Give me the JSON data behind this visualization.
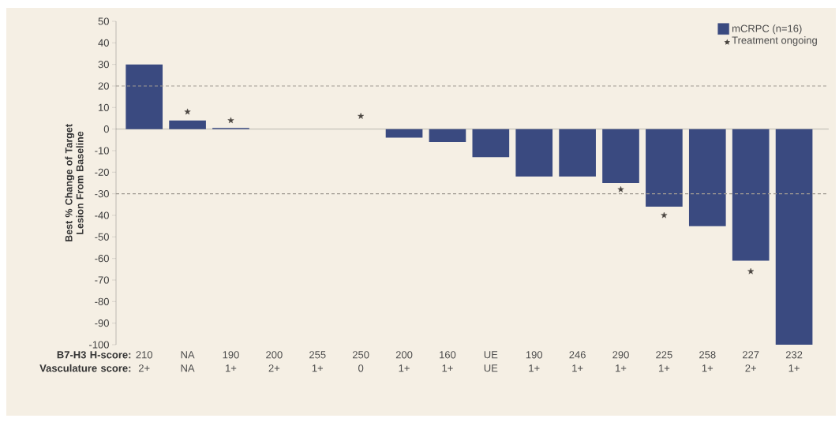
{
  "chart_data": {
    "type": "bar",
    "ylabel": "Best % Change of Target Lesion From Baseline",
    "xlabel": "B7-H3 H-score: Vasculature score:",
    "categories": [
      "210 2+",
      "NA NA",
      "190 1+",
      "200 2+",
      "255 1+",
      "250 0",
      "200 1+",
      "160 1+",
      "UE UE",
      "190 1+",
      "246 1+",
      "290 1+",
      "225 1+",
      "258 1+",
      "227 2+",
      "232 1+"
    ],
    "series": [
      {
        "name": "mCRPC (n=16)",
        "color": "#3a4a80",
        "values": [
          30,
          4,
          0.5,
          0,
          0,
          0,
          -4,
          -6,
          -13,
          -22,
          -22,
          -25,
          -36,
          -45,
          -61,
          -100
        ]
      },
      {
        "name": "Treatment ongoing",
        "type": "scatter",
        "marker": "star",
        "color": "#4a4540",
        "values": [
          null,
          8,
          4,
          null,
          null,
          6,
          null,
          null,
          null,
          null,
          null,
          -28,
          -40,
          null,
          -66,
          null
        ]
      }
    ],
    "ylim": [
      -100,
      50
    ],
    "yticks": [
      -100,
      -90,
      -80,
      -70,
      -60,
      -50,
      -40,
      -30,
      -20,
      -10,
      0,
      10,
      20,
      30,
      40,
      50
    ],
    "ref_lines": [
      {
        "axis": "y",
        "value": 20,
        "color": "#a09a92",
        "line_style": "dashed"
      },
      {
        "axis": "y",
        "value": -30,
        "color": "#a09a92",
        "line_style": "dashed"
      }
    ],
    "legend": "top right",
    "grid": false
  }
}
